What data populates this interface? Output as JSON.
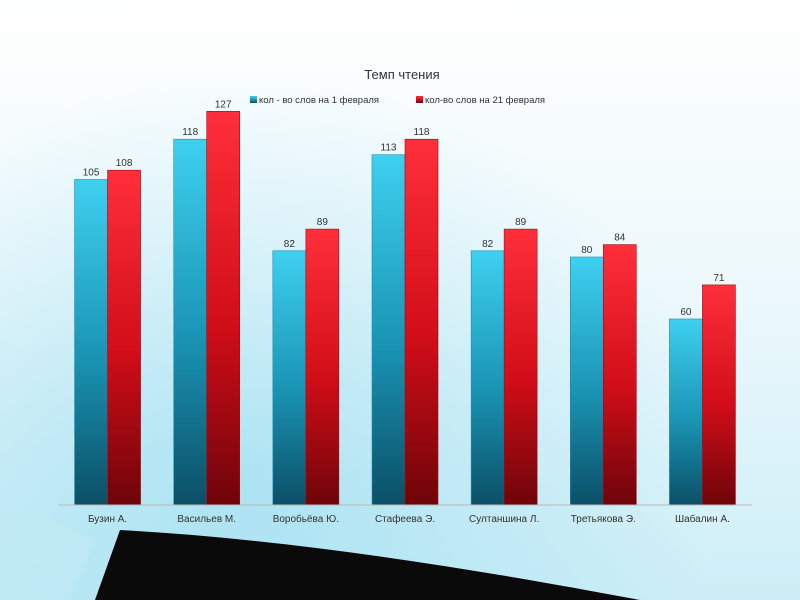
{
  "chart_data": {
    "type": "bar",
    "title": "Темп чтения",
    "categories": [
      "Бузин А.",
      "Васильев М.",
      "Воробьёва Ю.",
      "Стафеева Э.",
      "Султаншина Л.",
      "Третьякова Э.",
      "Шабалин А."
    ],
    "series": [
      {
        "name": "кол - во  слов на  1 февраля",
        "values": [
          105,
          118,
          82,
          113,
          82,
          80,
          60
        ],
        "color": "#2bb7d8"
      },
      {
        "name": "кол-во слов на  21 февраля",
        "values": [
          108,
          127,
          89,
          118,
          89,
          84,
          71
        ],
        "color": "#e0141e"
      }
    ],
    "ylim": [
      0,
      150
    ],
    "legend": "top",
    "grid": false,
    "data_labels": true
  }
}
